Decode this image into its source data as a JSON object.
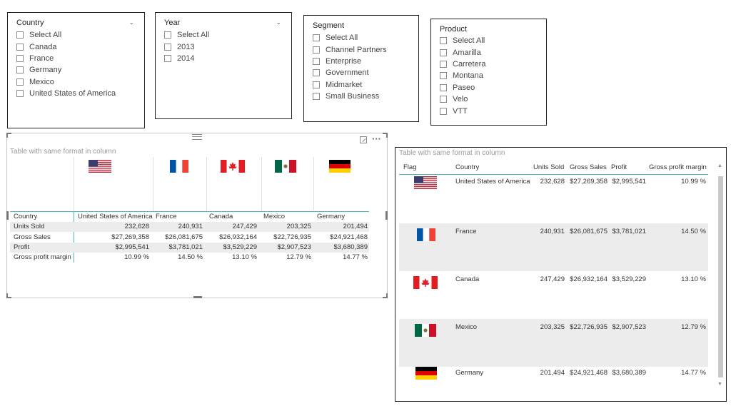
{
  "slicers": {
    "country": {
      "title": "Country",
      "items": [
        "Select All",
        "Canada",
        "France",
        "Germany",
        "Mexico",
        "United States of America"
      ]
    },
    "year": {
      "title": "Year",
      "items": [
        "Select All",
        "2013",
        "2014"
      ]
    },
    "segment": {
      "title": "Segment",
      "items": [
        "Select All",
        "Channel Partners",
        "Enterprise",
        "Government",
        "Midmarket",
        "Small Business"
      ]
    },
    "product": {
      "title": "Product",
      "items": [
        "Select All",
        "Amarilla",
        "Carretera",
        "Montana",
        "Paseo",
        "Velo",
        "VTT"
      ]
    }
  },
  "matrix": {
    "title": "Table with same format in column",
    "row_header": "Country",
    "columns": [
      "United States of America",
      "France",
      "Canada",
      "Mexico",
      "Germany"
    ],
    "flags": [
      "usa-flag",
      "france-flag",
      "canada-flag",
      "mexico-flag",
      "germany-flag"
    ],
    "rows": [
      {
        "label": "Units Sold",
        "values": [
          "232,628",
          "240,931",
          "247,429",
          "203,325",
          "201,494"
        ]
      },
      {
        "label": "Gross Sales",
        "values": [
          "$27,269,358",
          "$26,081,675",
          "$26,932,164",
          "$22,726,935",
          "$24,921,468"
        ]
      },
      {
        "label": "Profit",
        "values": [
          "$2,995,541",
          "$3,781,021",
          "$3,529,229",
          "$2,907,523",
          "$3,680,389"
        ]
      },
      {
        "label": "Gross profit margin",
        "values": [
          "10.99 %",
          "14.50 %",
          "13.10 %",
          "12.79 %",
          "14.77 %"
        ]
      }
    ],
    "more_label": "···",
    "focus_icon": "expand-icon"
  },
  "table": {
    "title": "Table with same format in column",
    "headers": [
      "Flag",
      "Country",
      "Units Sold",
      "Gross Sales",
      "Profit",
      "Gross profit margin"
    ],
    "rows": [
      {
        "flag": "usa-flag",
        "country": "United States of America",
        "units": "232,628",
        "sales": "$27,269,358",
        "profit": "$2,995,541",
        "margin": "10.99 %"
      },
      {
        "flag": "france-flag",
        "country": "France",
        "units": "240,931",
        "sales": "$26,081,675",
        "profit": "$3,781,021",
        "margin": "14.50 %"
      },
      {
        "flag": "canada-flag",
        "country": "Canada",
        "units": "247,429",
        "sales": "$26,932,164",
        "profit": "$3,529,229",
        "margin": "13.10 %"
      },
      {
        "flag": "mexico-flag",
        "country": "Mexico",
        "units": "203,325",
        "sales": "$22,726,935",
        "profit": "$2,907,523",
        "margin": "12.79 %"
      },
      {
        "flag": "germany-flag",
        "country": "Germany",
        "units": "201,494",
        "sales": "$24,921,468",
        "profit": "$3,680,389",
        "margin": "14.77 %"
      }
    ],
    "scroll_up": "▲",
    "scroll_down": "▼"
  },
  "colors": {
    "accent": "#4ab8b0",
    "alt_row": "#ececec",
    "title_gray": "#9a9a9a"
  }
}
